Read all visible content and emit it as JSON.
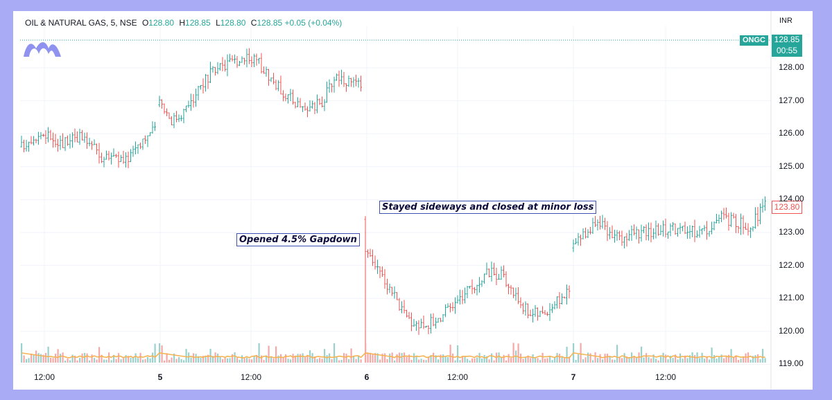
{
  "header": {
    "symbol": "OIL & NATURAL GAS, 5, NSE",
    "open_label": "O",
    "open": "128.80",
    "high_label": "H",
    "high": "128.85",
    "low_label": "L",
    "low": "128.80",
    "close_label": "C",
    "close": "128.85",
    "change": "+0.05 (+0.04%)",
    "currency": "INR"
  },
  "tags": {
    "ticker": "ONGC",
    "price": "128.85",
    "countdown": "00:55",
    "last_marker": "123.80"
  },
  "annotations": {
    "gapdown": "Opened 4.5% Gapdown",
    "sideways": "Stayed sideways and closed at minor loss"
  },
  "colors": {
    "up": "#26a69a",
    "down": "#ef5350",
    "volume_ma": "#f5b351",
    "frame": "#a9acf5"
  },
  "chart_data": {
    "type": "ohlc",
    "ylim": [
      119,
      129.2
    ],
    "y_ticks": [
      "120.00",
      "121.00",
      "122.00",
      "123.00",
      "124.00",
      "125.00",
      "126.00",
      "127.00",
      "128.00",
      "119.00"
    ],
    "x_ticks": [
      {
        "label": "12:00",
        "bold": false
      },
      {
        "label": "5",
        "bold": true
      },
      {
        "label": "12:00",
        "bold": false
      },
      {
        "label": "6",
        "bold": true
      },
      {
        "label": "12:00",
        "bold": false
      },
      {
        "label": "7",
        "bold": true
      },
      {
        "label": "12:00",
        "bold": false
      }
    ],
    "days": [
      {
        "day": "4",
        "close_path": [
          125.6,
          125.9,
          126.0,
          125.9,
          125.7,
          126.0,
          125.8,
          125.6,
          125.2,
          125.4,
          125.1,
          125.6,
          125.9,
          126.1
        ]
      },
      {
        "day": "5",
        "close_path": [
          127.0,
          126.4,
          126.7,
          127.3,
          127.8,
          128.0,
          128.2,
          128.4,
          128.1,
          127.6,
          127.2,
          126.9,
          126.7,
          127.0,
          127.8,
          127.6,
          127.4
        ]
      },
      {
        "day": "6",
        "close_path": [
          122.3,
          121.8,
          121.2,
          120.4,
          120.2,
          120.3,
          120.6,
          121.0,
          121.4,
          121.8,
          121.7,
          121.1,
          120.6,
          120.5,
          120.9,
          121.2
        ]
      },
      {
        "day": "7",
        "close_path": [
          122.6,
          123.1,
          123.2,
          122.8,
          123.0,
          123.0,
          123.1,
          123.1,
          123.0,
          123.1,
          123.5,
          123.3,
          123.2,
          123.8
        ]
      }
    ],
    "volume_ma_level": "low baseline with a spike near the 6 open"
  }
}
